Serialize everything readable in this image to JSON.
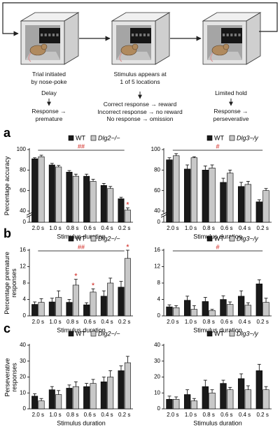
{
  "diagram": {
    "steps": [
      {
        "label": "Trial initiated\nby nose-poke",
        "phase": "Delay",
        "outcome": "Response →\npremature"
      },
      {
        "label": "Stimulus appears at\n1 of 5 locations",
        "outcome": "Correct response → reward\nIncorrect response → no reward\nNo response → omission"
      },
      {
        "phase": "Limited hold",
        "outcome": "Response →\nperseverative"
      }
    ]
  },
  "chart_data": [
    {
      "type": "bar",
      "panel": "a",
      "ylabel": "Percentage accuracy",
      "xlabel": "Stimulus duration",
      "categories": [
        "2.0 s",
        "1.0 s",
        "0.8 s",
        "0.6 s",
        "0.4 s",
        "0.2 s"
      ],
      "broken_axis": true,
      "ylim": [
        0,
        100
      ],
      "yticks": [
        0,
        40,
        60,
        80,
        100
      ],
      "significance": "##",
      "stars": [
        null,
        null,
        null,
        null,
        null,
        "*"
      ],
      "series": [
        {
          "name": "WT",
          "color": "#1a1a1a",
          "values": [
            91,
            85,
            78,
            74,
            65,
            52
          ],
          "errors": [
            1,
            1.5,
            1.5,
            2,
            2,
            1.5
          ]
        },
        {
          "name": "Dlg2−/−",
          "color": "#c8c8c8",
          "values": [
            93,
            83,
            74,
            69,
            62,
            41
          ],
          "errors": [
            1.5,
            1.5,
            2,
            2,
            2,
            2
          ]
        }
      ]
    },
    {
      "type": "bar",
      "xlabel": "Stimulus duration",
      "categories": [
        "2.0 s",
        "1.0 s",
        "0.8 s",
        "0.6 s",
        "0.4 s",
        "0.2 s"
      ],
      "broken_axis": true,
      "ylim": [
        0,
        100
      ],
      "yticks": [
        0,
        40,
        60,
        80,
        100
      ],
      "significance": "#",
      "series": [
        {
          "name": "WT",
          "color": "#1a1a1a",
          "values": [
            90,
            81,
            80,
            68,
            64,
            49
          ],
          "errors": [
            2,
            4,
            4,
            4,
            4,
            2
          ]
        },
        {
          "name": "Dlg3−/y",
          "color": "#c8c8c8",
          "values": [
            94,
            92,
            82,
            77,
            66,
            60
          ],
          "errors": [
            2,
            1,
            3,
            3,
            3,
            2
          ]
        }
      ]
    },
    {
      "type": "bar",
      "panel": "b",
      "ylabel": "Percentage premature\nresponses",
      "xlabel": "Stimulus duration",
      "categories": [
        "2.0 s",
        "1.0 s",
        "0.8 s",
        "0.6 s",
        "0.4 s",
        "0.2 s"
      ],
      "ylim": [
        0,
        16
      ],
      "yticks": [
        0,
        4,
        8,
        12,
        16
      ],
      "significance": "##",
      "stars": [
        null,
        null,
        "*",
        "*",
        null,
        "*"
      ],
      "series": [
        {
          "name": "WT",
          "color": "#1a1a1a",
          "values": [
            2.8,
            3.4,
            3.3,
            2.7,
            4.8,
            7.0
          ],
          "errors": [
            0.6,
            0.9,
            0.7,
            0.5,
            1.3,
            1.4
          ]
        },
        {
          "name": "Dlg2−/−",
          "color": "#c8c8c8",
          "values": [
            3.3,
            4.5,
            7.5,
            5.8,
            8.0,
            14.0
          ],
          "errors": [
            0.9,
            1.6,
            1.4,
            0.8,
            1.2,
            2.0
          ]
        }
      ]
    },
    {
      "type": "bar",
      "xlabel": "Stimulus duration",
      "categories": [
        "2.0 s",
        "1.0 s",
        "0.8 s",
        "0.6 s",
        "0.4 s",
        "0.2 s"
      ],
      "ylim": [
        0,
        16
      ],
      "yticks": [
        0,
        4,
        8,
        12,
        16
      ],
      "significance": "#",
      "series": [
        {
          "name": "WT",
          "color": "#1a1a1a",
          "values": [
            2.2,
            3.8,
            3.5,
            4.0,
            4.8,
            7.8
          ],
          "errors": [
            0.5,
            1.0,
            1.0,
            0.9,
            1.3,
            1.0
          ]
        },
        {
          "name": "Dlg3−/y",
          "color": "#c8c8c8",
          "values": [
            2.0,
            1.6,
            1.3,
            2.8,
            2.6,
            3.3
          ],
          "errors": [
            0.5,
            0.9,
            0.3,
            0.6,
            0.6,
            1.0
          ]
        }
      ]
    },
    {
      "type": "bar",
      "panel": "c",
      "ylabel": "Perseverative\nresponses",
      "xlabel": "Stimulus duration",
      "categories": [
        "2.0 s",
        "1.0 s",
        "0.8 s",
        "0.6 s",
        "0.4 s",
        "0.2 s"
      ],
      "ylim": [
        0,
        40
      ],
      "yticks": [
        0,
        10,
        20,
        30,
        40
      ],
      "series": [
        {
          "name": "WT",
          "color": "#1a1a1a",
          "values": [
            8,
            12,
            13,
            14,
            17,
            24
          ],
          "errors": [
            1.5,
            2,
            2,
            2,
            3,
            3
          ]
        },
        {
          "name": "Dlg2−/−",
          "color": "#c8c8c8",
          "values": [
            5,
            9,
            14,
            16,
            20,
            29
          ],
          "errors": [
            1.5,
            2.5,
            3,
            2.5,
            4,
            4
          ]
        }
      ]
    },
    {
      "type": "bar",
      "xlabel": "Stimulus duration",
      "categories": [
        "2.0 s",
        "1.0 s",
        "0.8 s",
        "0.6 s",
        "0.4 s",
        "0.2 s"
      ],
      "ylim": [
        0,
        40
      ],
      "yticks": [
        0,
        10,
        20,
        30,
        40
      ],
      "series": [
        {
          "name": "WT",
          "color": "#1a1a1a",
          "values": [
            6,
            9,
            14,
            16,
            19,
            24
          ],
          "errors": [
            2,
            3,
            4,
            2,
            3,
            4
          ]
        },
        {
          "name": "Dlg3−/y",
          "color": "#c8c8c8",
          "values": [
            6,
            5,
            10,
            12,
            12,
            12
          ],
          "errors": [
            1.5,
            1.5,
            2,
            1.5,
            2.5,
            2
          ]
        }
      ]
    }
  ]
}
